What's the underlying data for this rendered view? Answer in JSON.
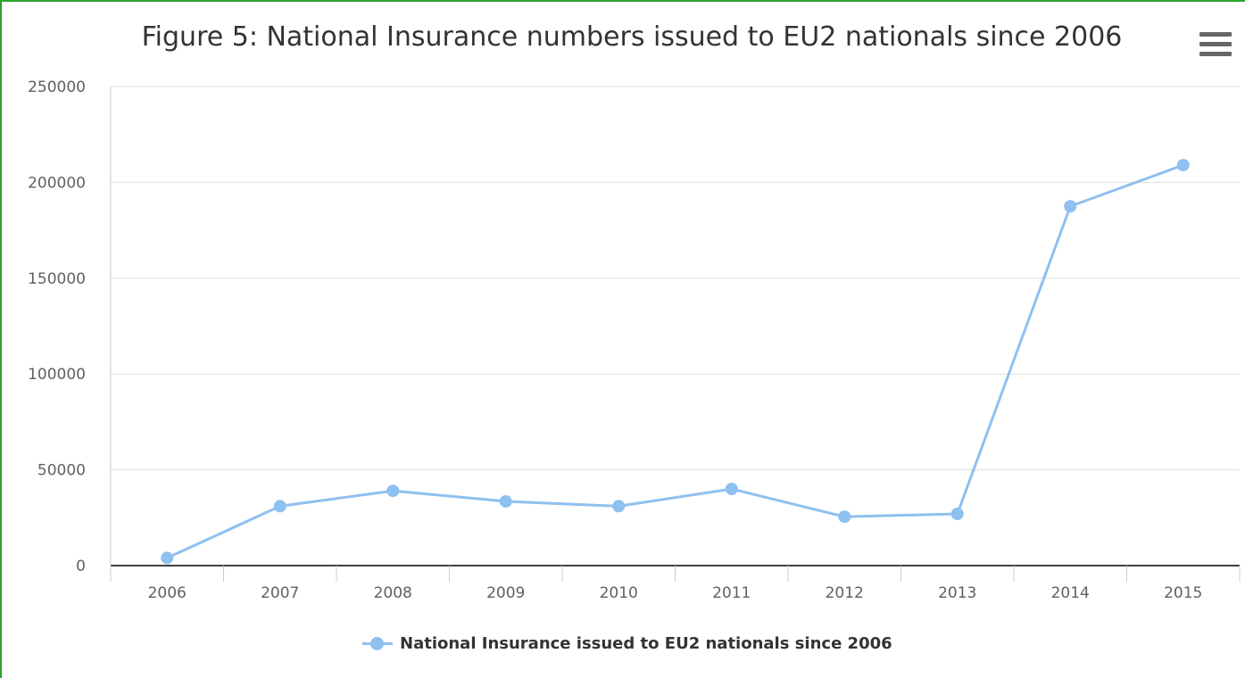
{
  "chart_data": {
    "type": "line",
    "title": "Figure 5: National Insurance numbers issued to EU2 nationals since 2006",
    "xlabel": "",
    "ylabel": "",
    "categories": [
      "2006",
      "2007",
      "2008",
      "2009",
      "2010",
      "2011",
      "2012",
      "2013",
      "2014",
      "2015"
    ],
    "series": [
      {
        "name": "National Insurance issued to EU2 nationals since 2006",
        "values": [
          4000,
          31000,
          39000,
          33500,
          31000,
          40000,
          25500,
          27000,
          187500,
          209000
        ],
        "color": "#8ec0f0"
      }
    ],
    "ylim": [
      0,
      250000
    ],
    "yticks": [
      "0",
      "50000",
      "100000",
      "150000",
      "200000",
      "250000"
    ],
    "grid": true,
    "legend_position": "bottom-center"
  },
  "menu": {
    "icon": "hamburger-menu-icon"
  }
}
